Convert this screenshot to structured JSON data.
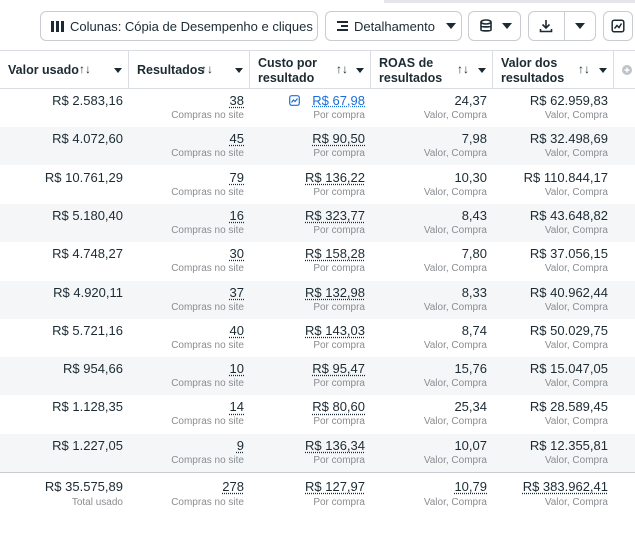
{
  "toolbar": {
    "columns_label": "Colunas: Cópia de Desempenho e cliques",
    "breakdown_label": "Detalhamento"
  },
  "columns": [
    {
      "label": "Valor usado",
      "sort": "↑↓"
    },
    {
      "label": "Resultados",
      "sort": "↑↓"
    },
    {
      "label_line1": "Custo por",
      "label_line2": "resultado",
      "sort": "↑↓"
    },
    {
      "label_line1": "ROAS de",
      "label_line2": "resultados",
      "sort": "↑↓"
    },
    {
      "label_line1": "Valor dos",
      "label_line2": "resultados",
      "sort": "↑↓"
    }
  ],
  "rows": [
    {
      "spent": "R$ 2.583,16",
      "results": "38",
      "results_sub": "Compras no site",
      "cpr": "R$ 67,98",
      "cpr_sub": "Por compra",
      "roas": "24,37",
      "roas_sub": "Valor, Compra",
      "value": "R$ 62.959,83",
      "value_sub": "Valor, Compra"
    },
    {
      "spent": "R$ 4.072,60",
      "results": "45",
      "results_sub": "Compras no site",
      "cpr": "R$ 90,50",
      "cpr_sub": "Por compra",
      "roas": "7,98",
      "roas_sub": "Valor, Compra",
      "value": "R$ 32.498,69",
      "value_sub": "Valor, Compra"
    },
    {
      "spent": "R$ 10.761,29",
      "results": "79",
      "results_sub": "Compras no site",
      "cpr": "R$ 136,22",
      "cpr_sub": "Por compra",
      "roas": "10,30",
      "roas_sub": "Valor, Compra",
      "value": "R$ 110.844,17",
      "value_sub": "Valor, Compra"
    },
    {
      "spent": "R$ 5.180,40",
      "results": "16",
      "results_sub": "Compras no site",
      "cpr": "R$ 323,77",
      "cpr_sub": "Por compra",
      "roas": "8,43",
      "roas_sub": "Valor, Compra",
      "value": "R$ 43.648,82",
      "value_sub": "Valor, Compra"
    },
    {
      "spent": "R$ 4.748,27",
      "results": "30",
      "results_sub": "Compras no site",
      "cpr": "R$ 158,28",
      "cpr_sub": "Por compra",
      "roas": "7,80",
      "roas_sub": "Valor, Compra",
      "value": "R$ 37.056,15",
      "value_sub": "Valor, Compra"
    },
    {
      "spent": "R$ 4.920,11",
      "results": "37",
      "results_sub": "Compras no site",
      "cpr": "R$ 132,98",
      "cpr_sub": "Por compra",
      "roas": "8,33",
      "roas_sub": "Valor, Compra",
      "value": "R$ 40.962,44",
      "value_sub": "Valor, Compra"
    },
    {
      "spent": "R$ 5.721,16",
      "results": "40",
      "results_sub": "Compras no site",
      "cpr": "R$ 143,03",
      "cpr_sub": "Por compra",
      "roas": "8,74",
      "roas_sub": "Valor, Compra",
      "value": "R$ 50.029,75",
      "value_sub": "Valor, Compra"
    },
    {
      "spent": "R$ 954,66",
      "results": "10",
      "results_sub": "Compras no site",
      "cpr": "R$ 95,47",
      "cpr_sub": "Por compra",
      "roas": "15,76",
      "roas_sub": "Valor, Compra",
      "value": "R$ 15.047,05",
      "value_sub": "Valor, Compra"
    },
    {
      "spent": "R$ 1.128,35",
      "results": "14",
      "results_sub": "Compras no site",
      "cpr": "R$ 80,60",
      "cpr_sub": "Por compra",
      "roas": "25,34",
      "roas_sub": "Valor, Compra",
      "value": "R$ 28.589,45",
      "value_sub": "Valor, Compra"
    },
    {
      "spent": "R$ 1.227,05",
      "results": "9",
      "results_sub": "Compras no site",
      "cpr": "R$ 136,34",
      "cpr_sub": "Por compra",
      "roas": "10,07",
      "roas_sub": "Valor, Compra",
      "value": "R$ 12.355,81",
      "value_sub": "Valor, Compra"
    }
  ],
  "totals": {
    "spent": "R$ 35.575,89",
    "spent_sub": "Total usado",
    "results": "278",
    "results_sub": "Compras no site",
    "cpr": "R$ 127,97",
    "cpr_sub": "Por compra",
    "roas": "10,79",
    "roas_sub": "Valor, Compra",
    "value": "R$ 383.962,41",
    "value_sub": "Valor, Compra"
  },
  "colors": {
    "border": "#dadde1",
    "alt_row": "#f5f6f7",
    "link": "#1a6ed8",
    "muted": "#8a8d91"
  }
}
